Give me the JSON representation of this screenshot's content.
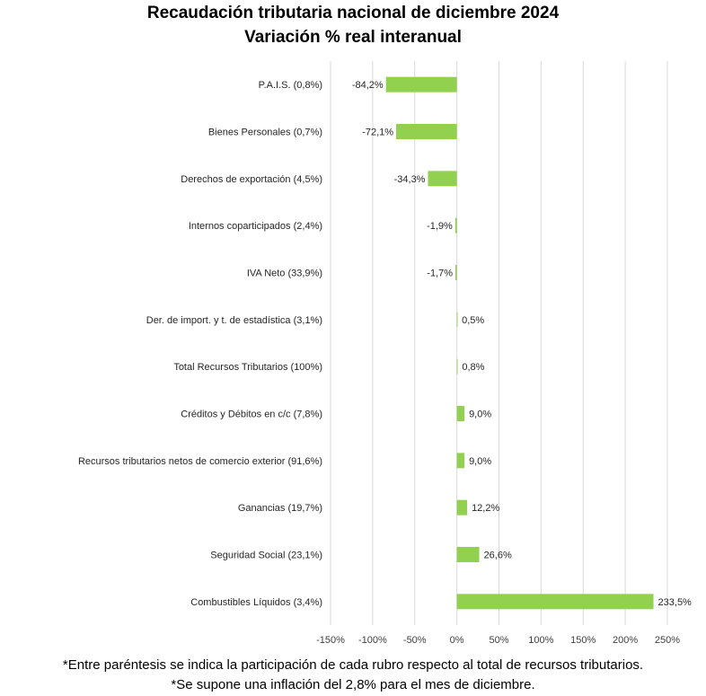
{
  "chart_data": {
    "type": "bar",
    "orientation": "horizontal",
    "title": "Recaudación tributaria nacional de diciembre 2024",
    "subtitle": "Variación % real interanual",
    "xlim": [
      -150,
      250
    ],
    "x_ticks": [
      "-150%",
      "-100%",
      "-50%",
      "0%",
      "50%",
      "100%",
      "150%",
      "200%",
      "250%"
    ],
    "x_tick_values": [
      -150,
      -100,
      -50,
      0,
      50,
      100,
      150,
      200,
      250
    ],
    "grid": true,
    "bar_color": "#92d050",
    "categories": [
      "P.A.I.S. (0,8%)",
      "Bienes Personales (0,7%)",
      "Derechos de exportación (4,5%)",
      "Internos coparticipados (2,4%)",
      "IVA Neto (33,9%)",
      "Der. de import. y t. de estadística (3,1%)",
      "Total Recursos Tributarios (100%)",
      "Créditos y Débitos en c/c (7,8%)",
      "Recursos tributarios netos de comercio exterior (91,6%)",
      "Ganancias (19,7%)",
      "Seguridad Social (23,1%)",
      "Combustibles Líquidos (3,4%)"
    ],
    "values": [
      -84.2,
      -72.1,
      -34.3,
      -1.9,
      -1.7,
      0.5,
      0.8,
      9.0,
      9.0,
      12.2,
      26.6,
      233.5
    ],
    "data_labels": [
      "-84,2%",
      "-72,1%",
      "-34,3%",
      "-1,9%",
      "-1,7%",
      "0,5%",
      "0,8%",
      "9,0%",
      "9,0%",
      "12,2%",
      "26,6%",
      "233,5%"
    ]
  },
  "footnotes": [
    "*Entre paréntesis se indica la participación de cada rubro respecto al total de recursos tributarios.",
    "*Se supone una inflación del 2,8% para el mes de diciembre."
  ]
}
